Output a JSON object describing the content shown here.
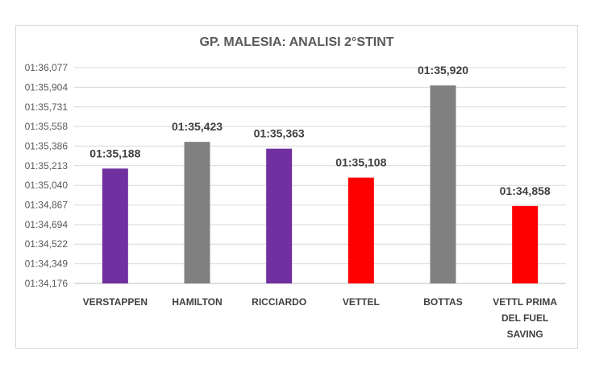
{
  "chart_data": {
    "type": "bar",
    "title": "GP. MALESIA: ANALISI 2°STINT",
    "xlabel": "",
    "ylabel": "",
    "categories": [
      [
        "VERSTAPPEN"
      ],
      [
        "HAMILTON"
      ],
      [
        "RICCIARDO"
      ],
      [
        "VETTEL"
      ],
      [
        "BOTTAS"
      ],
      [
        "VETTL PRIMA",
        "DEL FUEL",
        "SAVING"
      ]
    ],
    "values": [
      95.188,
      95.423,
      95.363,
      95.108,
      95.92,
      94.858
    ],
    "data_labels": [
      "01:35,188",
      "01:35,423",
      "01:35,363",
      "01:35,108",
      "01:35,920",
      "01:34,858"
    ],
    "bar_colors": [
      "#7030a0",
      "#808080",
      "#7030a0",
      "#ff0000",
      "#808080",
      "#ff0000"
    ],
    "ylim": [
      94.176,
      96.077
    ],
    "y_ticks": [
      94.176,
      94.349,
      94.522,
      94.694,
      94.867,
      95.04,
      95.213,
      95.386,
      95.558,
      95.731,
      95.904,
      96.077
    ],
    "y_tick_labels": [
      "01:34,176",
      "01:34,349",
      "01:34,522",
      "01:34,694",
      "01:34,867",
      "01:35,040",
      "01:35,213",
      "01:35,386",
      "01:35,558",
      "01:35,731",
      "01:35,904",
      "01:36,077"
    ],
    "grid": true,
    "legend": "none"
  }
}
